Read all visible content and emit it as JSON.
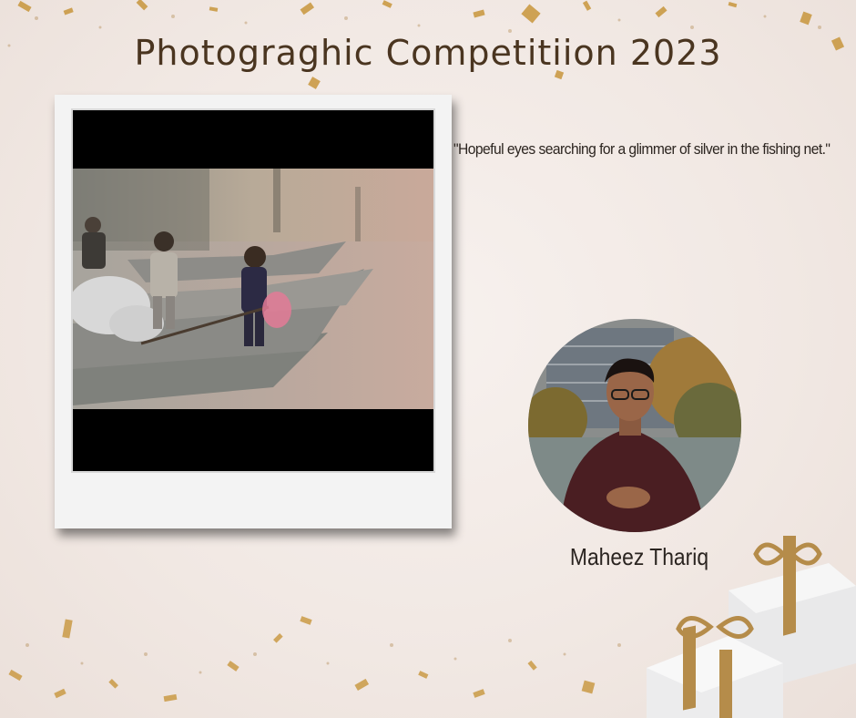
{
  "title": "Photograghic Competitiion 2023",
  "quote": "\"Hopeful eyes searching for a glimmer of silver in the fishing net.\"",
  "photographer": {
    "name": "Maheez Thariq"
  },
  "colors": {
    "title": "#4a3520",
    "gold": "#c8963c",
    "background": "#f3ebe7"
  }
}
